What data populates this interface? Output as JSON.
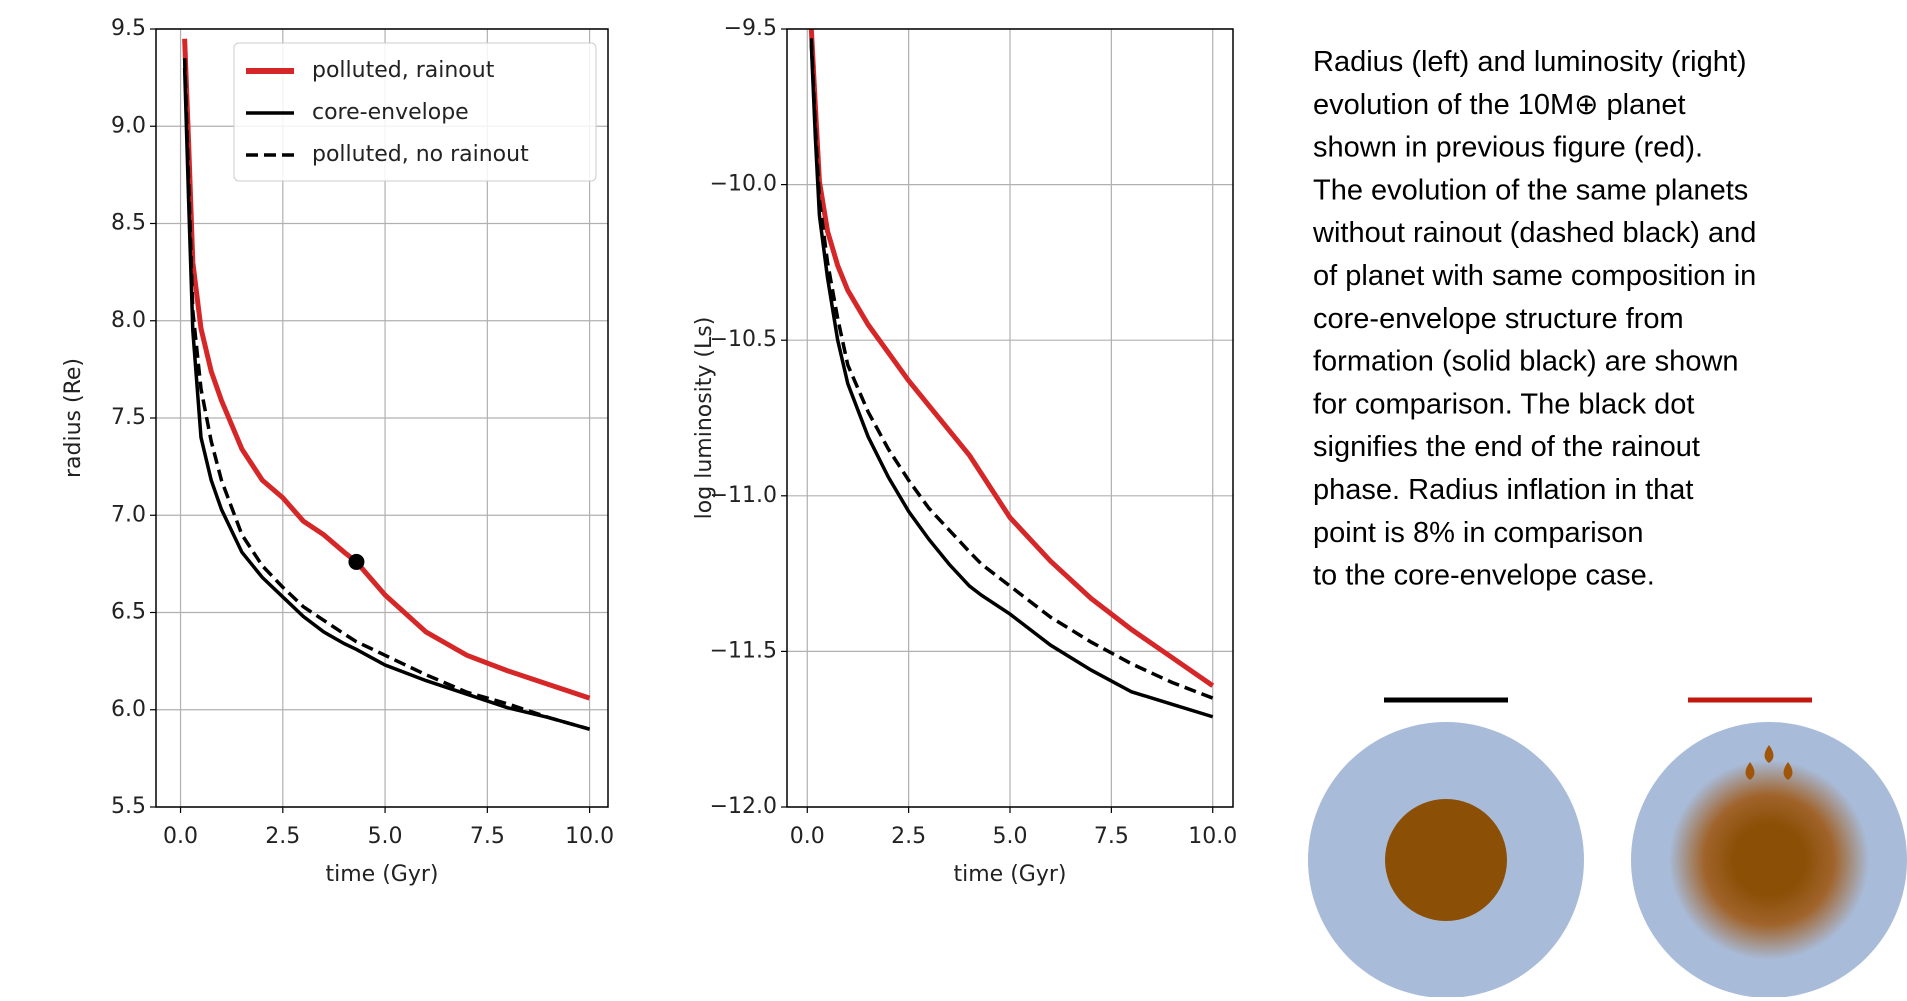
{
  "chart_data": [
    {
      "type": "line",
      "xlabel": "time (Gyr)",
      "ylabel": "radius (Re)",
      "xlim": [
        -0.6,
        10.45
      ],
      "ylim": [
        5.5,
        9.5
      ],
      "xticks": [
        {
          "value": 0,
          "label": "0.0"
        },
        2.5,
        {
          "value": 5,
          "label": "5.0"
        },
        7.5,
        {
          "value": 10,
          "label": "10.0"
        }
      ],
      "yticks": [
        5.5,
        {
          "value": 6,
          "label": "6.0"
        },
        6.5,
        {
          "value": 7,
          "label": "7.0"
        },
        7.5,
        {
          "value": 8,
          "label": "8.0"
        },
        8.5,
        {
          "value": 9,
          "label": "9.0"
        },
        9.5
      ],
      "grid": true,
      "legend": "upper right",
      "x": [
        0.1,
        0.2,
        0.3,
        0.5,
        0.75,
        1,
        1.5,
        2,
        2.5,
        3,
        3.5,
        4,
        4.3,
        5,
        6,
        7,
        8,
        9,
        10
      ],
      "series": [
        {
          "name": "polluted, rainout",
          "color": "#d62728",
          "linestyle": "solid",
          "values": [
            9.45,
            8.9,
            8.3,
            7.96,
            7.74,
            7.59,
            7.34,
            7.18,
            7.09,
            6.97,
            6.9,
            6.81,
            6.76,
            6.59,
            6.4,
            6.28,
            6.2,
            6.13,
            6.06
          ]
        },
        {
          "name": "core-envelope",
          "color": "#000000",
          "linestyle": "solid",
          "values": [
            9.3,
            8.6,
            7.95,
            7.4,
            7.18,
            7.03,
            6.81,
            6.68,
            6.58,
            6.48,
            6.4,
            6.34,
            6.31,
            6.23,
            6.15,
            6.08,
            6.01,
            5.96,
            5.9
          ]
        },
        {
          "name": "polluted, no rainout",
          "color": "#000000",
          "linestyle": "dashed",
          "values": [
            9.35,
            8.7,
            8.05,
            7.65,
            7.38,
            7.18,
            6.9,
            6.74,
            6.63,
            6.53,
            6.46,
            6.39,
            6.35,
            6.28,
            6.18,
            6.09,
            6.03,
            5.96,
            5.9
          ]
        }
      ],
      "points": [
        {
          "x": 4.3,
          "y": 6.76,
          "color": "#000000"
        }
      ]
    },
    {
      "type": "line",
      "xlabel": "time (Gyr)",
      "ylabel": "log luminosity (Ls)",
      "xlim": [
        -0.5,
        10.5
      ],
      "ylim": [
        -12,
        -9.5
      ],
      "xticks": [
        {
          "value": 0,
          "label": "0.0"
        },
        2.5,
        {
          "value": 5,
          "label": "5.0"
        },
        7.5,
        {
          "value": 10,
          "label": "10.0"
        }
      ],
      "yticks": [
        {
          "value": -12,
          "label": "−12.0"
        },
        {
          "value": -11.5,
          "label": "−11.5"
        },
        {
          "value": -11,
          "label": "−11.0"
        },
        {
          "value": -10.5,
          "label": "−10.5"
        },
        {
          "value": -10,
          "label": "−10.0"
        },
        {
          "value": -9.5,
          "label": "−9.5"
        }
      ],
      "grid": true,
      "x": [
        0.1,
        0.2,
        0.3,
        0.5,
        0.75,
        1,
        1.5,
        2,
        2.5,
        3,
        3.5,
        4,
        4.3,
        5,
        6,
        7,
        8,
        9,
        10
      ],
      "series": [
        {
          "color": "#d62728",
          "linestyle": "solid",
          "values": [
            -9.5,
            -9.75,
            -9.99,
            -10.15,
            -10.26,
            -10.34,
            -10.45,
            -10.54,
            -10.63,
            -10.71,
            -10.79,
            -10.87,
            -10.93,
            -11.07,
            -11.21,
            -11.33,
            -11.43,
            -11.52,
            -11.61
          ]
        },
        {
          "color": "#000000",
          "linestyle": "solid",
          "values": [
            -9.55,
            -9.85,
            -10.1,
            -10.3,
            -10.5,
            -10.64,
            -10.81,
            -10.94,
            -11.05,
            -11.14,
            -11.22,
            -11.29,
            -11.32,
            -11.38,
            -11.48,
            -11.56,
            -11.63,
            -11.67,
            -11.71
          ]
        },
        {
          "color": "#000000",
          "linestyle": "dashed",
          "values": [
            -9.53,
            -9.82,
            -10.05,
            -10.25,
            -10.43,
            -10.58,
            -10.73,
            -10.85,
            -10.95,
            -11.04,
            -11.11,
            -11.18,
            -11.22,
            -11.29,
            -11.39,
            -11.47,
            -11.54,
            -11.6,
            -11.65
          ]
        }
      ]
    }
  ],
  "caption": [
    "Radius (left) and luminosity (right)",
    "evolution of the 10M⊕ planet",
    "shown in previous figure (red).",
    "The evolution of the same planets",
    "without rainout (dashed black) and",
    "of planet with same composition in",
    "core-envelope structure from",
    "formation (solid black) are shown",
    "for comparison. The black dot",
    "signifies the end of the rainout",
    "phase. Radius inflation in that",
    "point is 8% in comparison",
    "to the core-envelope case."
  ]
}
